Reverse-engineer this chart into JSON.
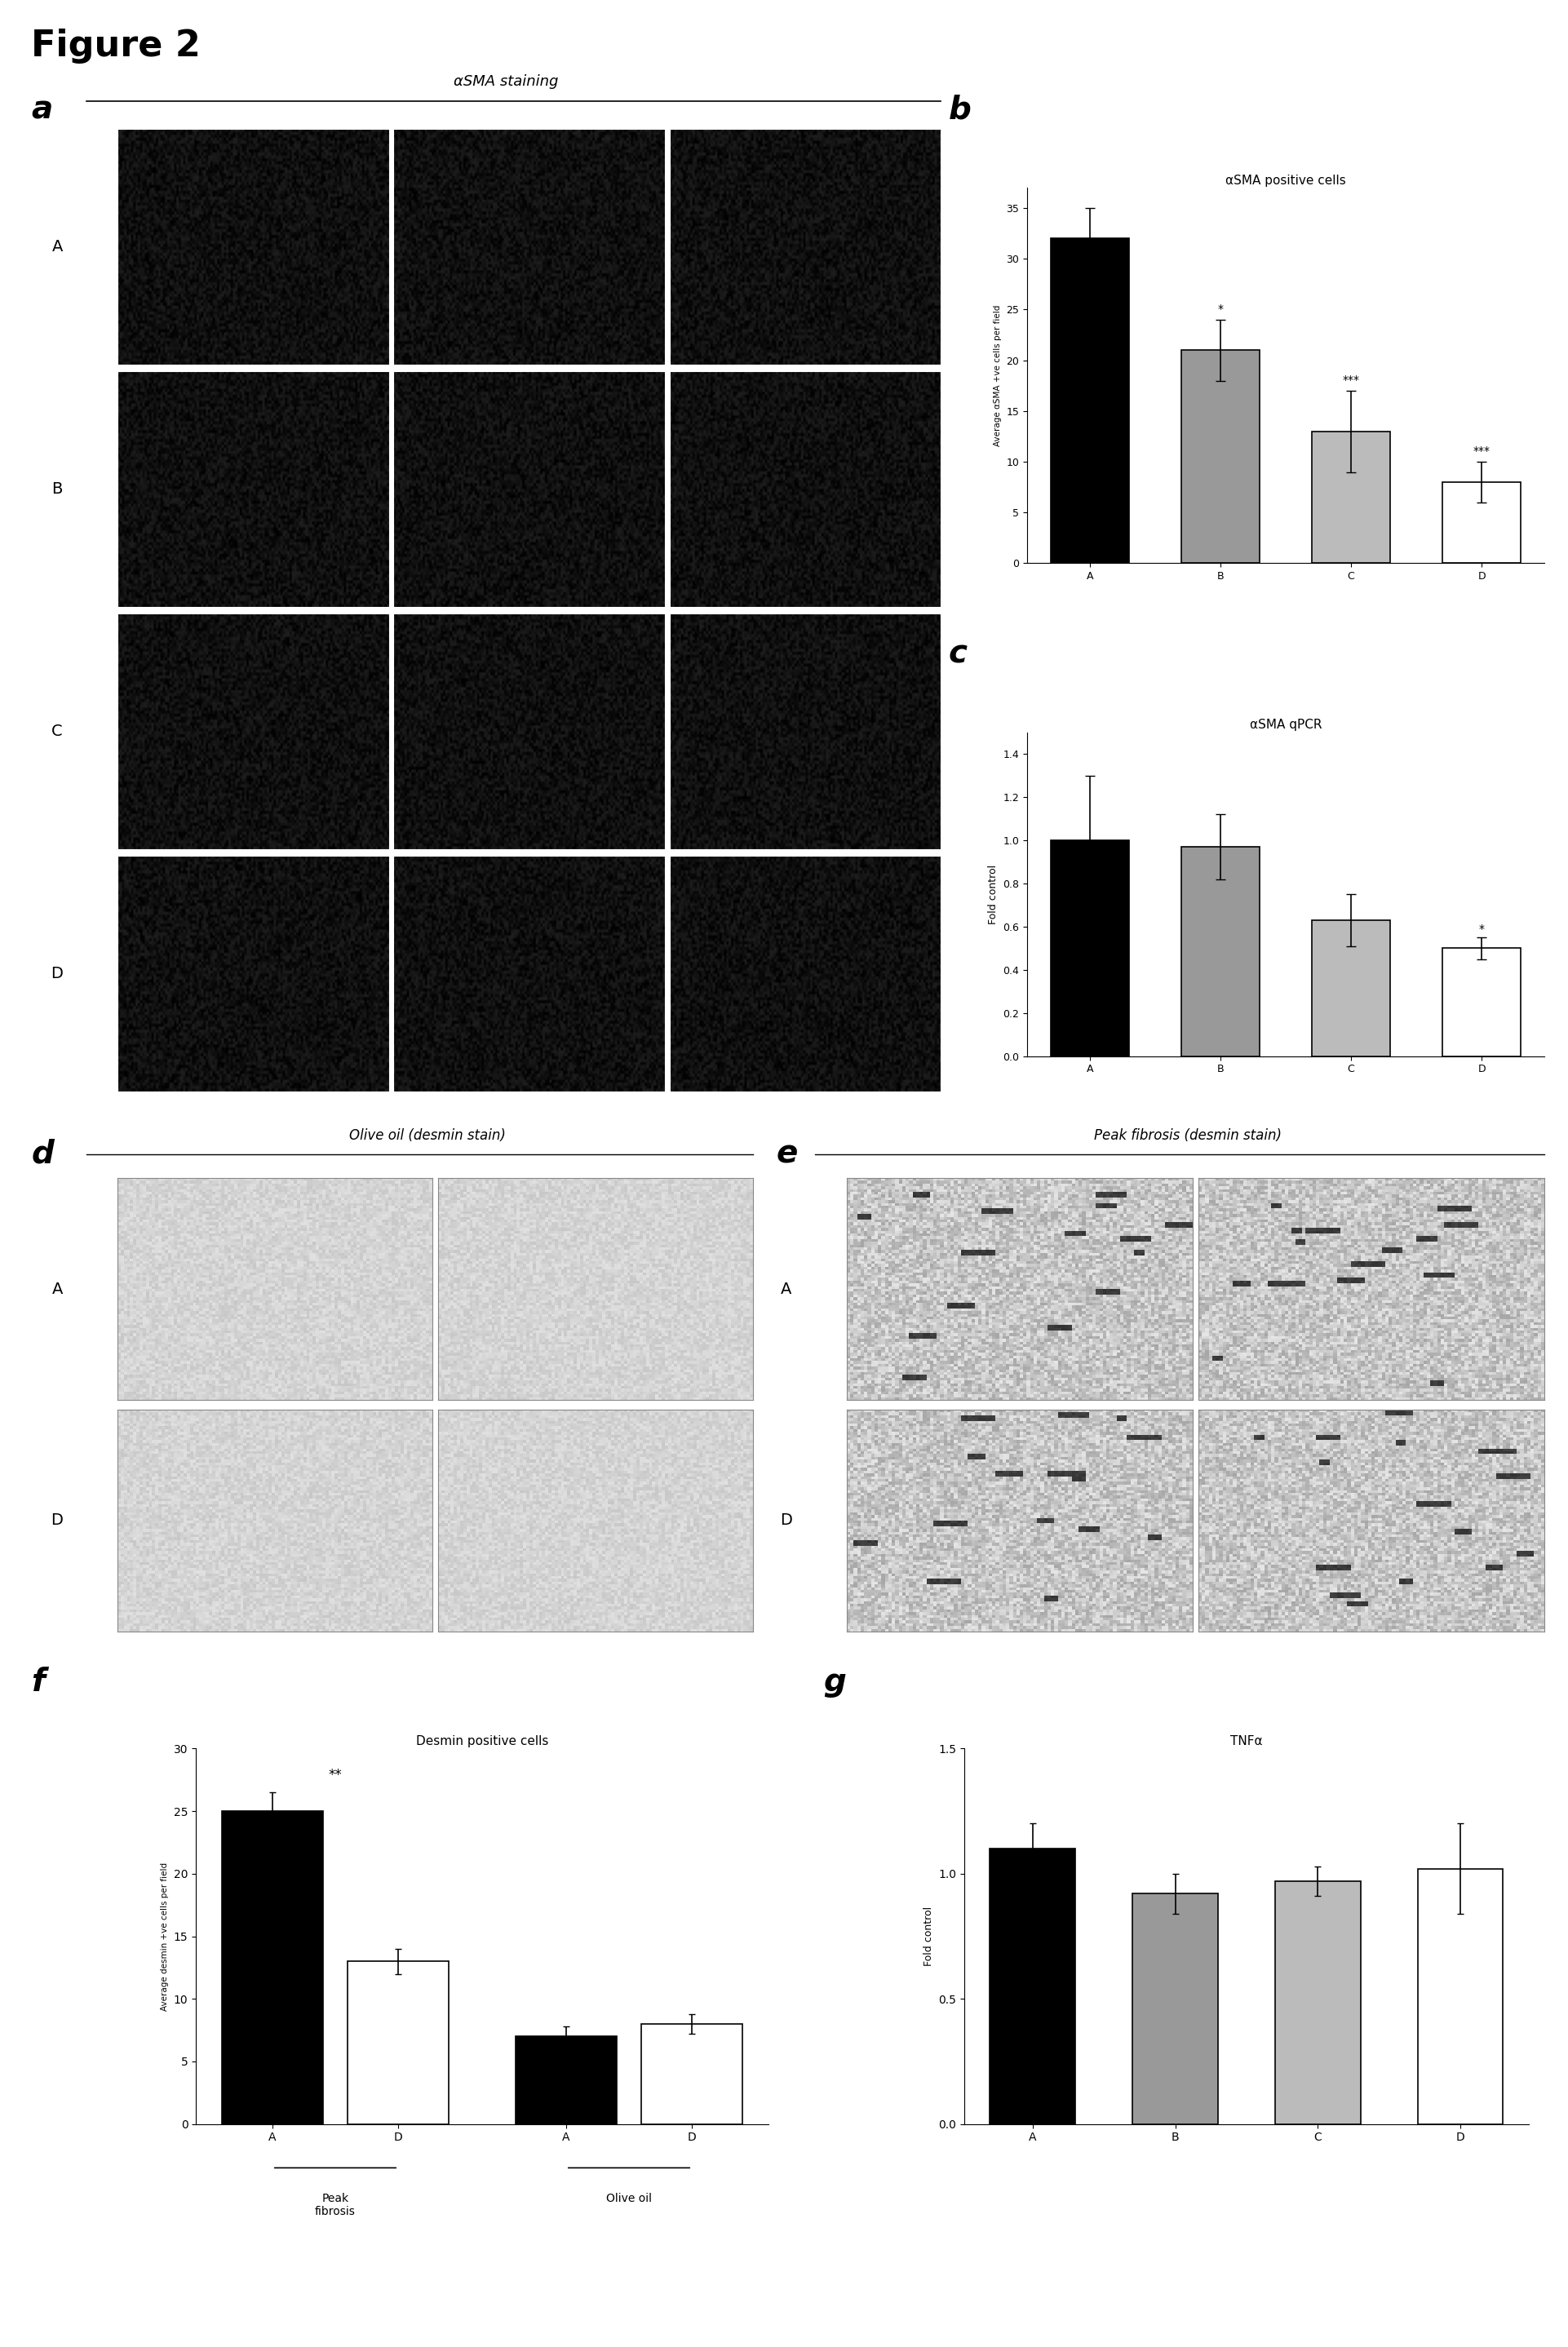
{
  "figure_title": "Figure 2",
  "panel_b": {
    "title": "αSMA positive cells",
    "ylabel": "Average αSMA +ve cells per field",
    "categories": [
      "A",
      "B",
      "C",
      "D"
    ],
    "values": [
      32,
      21,
      13,
      8
    ],
    "errors": [
      3,
      3,
      4,
      2
    ],
    "colors": [
      "#000000",
      "#999999",
      "#bbbbbb",
      "#ffffff"
    ],
    "edge_colors": [
      "#000000",
      "#000000",
      "#000000",
      "#000000"
    ],
    "significance": [
      "",
      "*",
      "***",
      "***"
    ],
    "ylim": [
      0,
      37
    ],
    "yticks": [
      0,
      5,
      10,
      15,
      20,
      25,
      30,
      35
    ]
  },
  "panel_c": {
    "title": "αSMA qPCR",
    "ylabel": "Fold control",
    "categories": [
      "A",
      "B",
      "C",
      "D"
    ],
    "values": [
      1.0,
      0.97,
      0.63,
      0.5
    ],
    "errors": [
      0.3,
      0.15,
      0.12,
      0.05
    ],
    "colors": [
      "#000000",
      "#999999",
      "#bbbbbb",
      "#ffffff"
    ],
    "edge_colors": [
      "#000000",
      "#000000",
      "#000000",
      "#000000"
    ],
    "significance": [
      "",
      "",
      "",
      "*"
    ],
    "ylim": [
      0,
      1.5
    ],
    "yticks": [
      0,
      0.2,
      0.4,
      0.6,
      0.8,
      1.0,
      1.2,
      1.4
    ]
  },
  "panel_f": {
    "title": "Desmin positive cells",
    "ylabel": "Average desmin +ve cells per field",
    "categories": [
      "A",
      "D",
      "A",
      "D"
    ],
    "values": [
      25,
      13,
      7,
      8
    ],
    "errors": [
      1.5,
      1.0,
      0.8,
      0.8
    ],
    "colors": [
      "#000000",
      "#ffffff",
      "#000000",
      "#ffffff"
    ],
    "edge_colors": [
      "#000000",
      "#000000",
      "#000000",
      "#000000"
    ],
    "significance_pf": "**",
    "ylim": [
      0,
      30
    ],
    "yticks": [
      0,
      5,
      10,
      15,
      20,
      25,
      30
    ],
    "group1_label": "Peak\nfibrosis",
    "group2_label": "Olive oil"
  },
  "panel_g": {
    "title": "TNFα",
    "ylabel": "Fold control",
    "categories": [
      "A",
      "B",
      "C",
      "D"
    ],
    "values": [
      1.1,
      0.92,
      0.97,
      1.02
    ],
    "errors": [
      0.1,
      0.08,
      0.06,
      0.18
    ],
    "colors": [
      "#000000",
      "#999999",
      "#bbbbbb",
      "#ffffff"
    ],
    "edge_colors": [
      "#000000",
      "#000000",
      "#000000",
      "#000000"
    ],
    "ylim": [
      0,
      1.5
    ],
    "yticks": [
      0,
      0.5,
      1.0,
      1.5
    ]
  },
  "row_labels_a": [
    "A",
    "B",
    "C",
    "D"
  ],
  "row_labels_de": [
    "A",
    "D"
  ],
  "panel_a_label": "αSMA staining",
  "panel_d_label": "Olive oil (desmin stain)",
  "panel_e_label": "Peak fibrosis (desmin stain)"
}
